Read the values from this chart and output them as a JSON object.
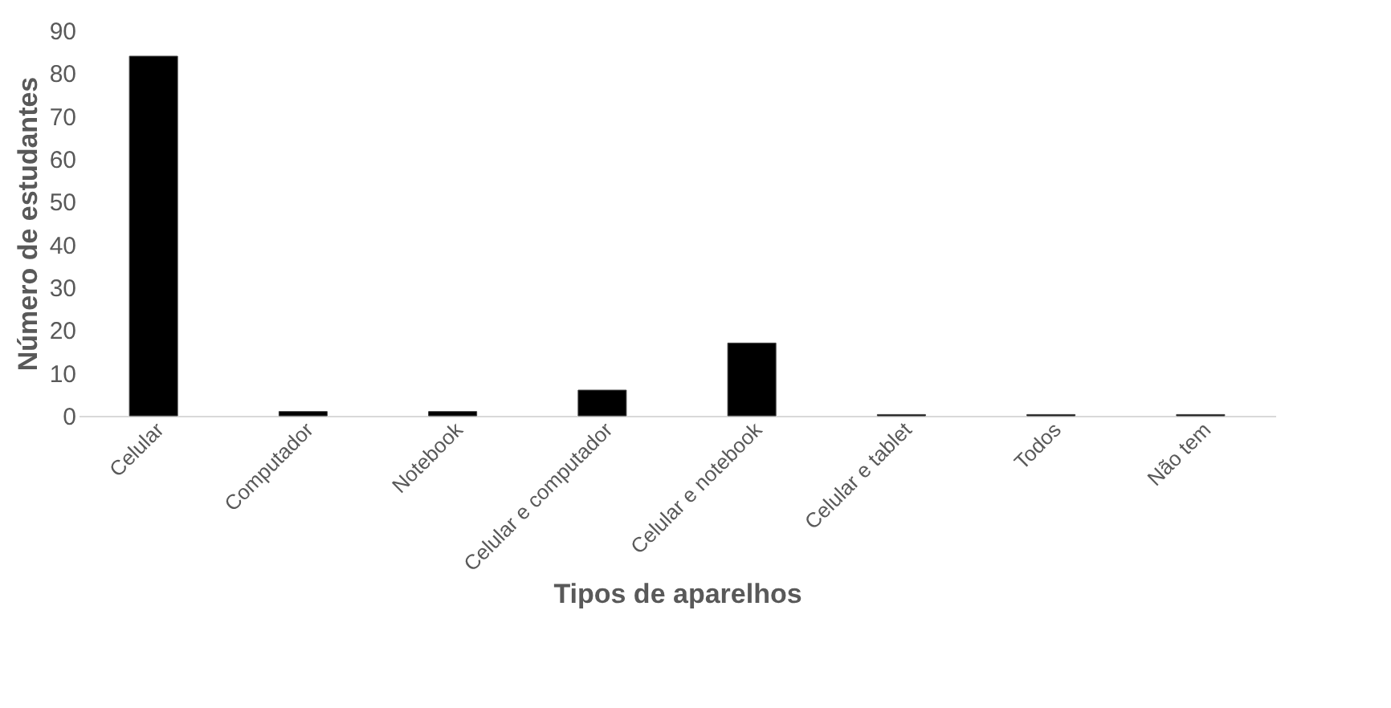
{
  "chart_data": {
    "type": "bar",
    "xlabel": "Tipos de aparelhos",
    "ylabel": "Número de estudantes",
    "categories": [
      "Celular",
      "Computador",
      "Notebook",
      "Celular e computador",
      "Celular e notebook",
      "Celular e tablet",
      "Todos",
      "Não tem"
    ],
    "values": [
      84,
      1,
      1,
      6,
      17,
      0.3,
      0.3,
      0.3
    ],
    "color": "#000000",
    "ylim": [
      0,
      90
    ],
    "yticks": [
      0,
      10,
      20,
      30,
      40,
      50,
      60,
      70,
      80,
      90
    ],
    "grid": false
  }
}
